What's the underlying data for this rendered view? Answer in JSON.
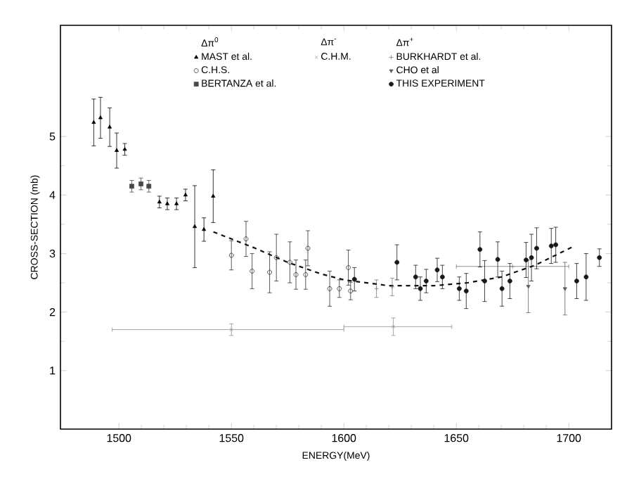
{
  "chart_data": {
    "type": "scatter",
    "xlabel": "ENERGY(MeV)",
    "ylabel": "CROSS-SECTION (mb)",
    "xlim": [
      1474,
      1719
    ],
    "ylim": [
      0,
      6.9
    ],
    "xticks": [
      1500,
      1550,
      1600,
      1650,
      1700
    ],
    "yticks": [
      1,
      2,
      3,
      4,
      5
    ],
    "legend": "top",
    "annotations": [
      "Δπ$^{0}$",
      "Δπ$^{-}$",
      "Δπ$^{+}$"
    ],
    "series": [
      {
        "name": "MAST et al.",
        "color": "#000000",
        "marker": "triangle",
        "x": [
          1488.8,
          1491.8,
          1495.9,
          1499,
          1502.6,
          1518,
          1521.5,
          1525.6,
          1529.6,
          1533.7,
          1537.8,
          1541.9
        ],
        "values": [
          5.24,
          5.32,
          5.16,
          4.76,
          4.78,
          3.88,
          3.85,
          3.85,
          4.0,
          3.46,
          3.41,
          3.98
        ],
        "errors": [
          0.4,
          0.35,
          0.33,
          0.3,
          0.1,
          0.1,
          0.1,
          0.1,
          0.1,
          0.7,
          0.2,
          0.45
        ]
      },
      {
        "name": "C.H.S.",
        "color": "#303030",
        "marker": "circle",
        "x": [
          1550,
          1556.5,
          1559.2,
          1567,
          1570,
          1576,
          1578.7,
          1583,
          1584,
          1593.7,
          1598,
          1602,
          1603
        ],
        "values": [
          2.97,
          3.25,
          2.7,
          2.68,
          2.93,
          2.85,
          2.64,
          2.64,
          3.09,
          2.4,
          2.4,
          2.76,
          2.36
        ],
        "errors": [
          0.25,
          0.3,
          0.3,
          0.35,
          0.4,
          0.35,
          0.25,
          0.25,
          0.3,
          0.3,
          0.15,
          0.3,
          0.15
        ]
      },
      {
        "name": "BERTANZA et al.",
        "color": "#484848",
        "marker": "square",
        "x": [
          1505.7,
          1509.8,
          1513.3
        ],
        "values": [
          4.15,
          4.19,
          4.15
        ],
        "errors": [
          0.1,
          0.1,
          0.1
        ]
      },
      {
        "name": "C.H.M.",
        "color": "#909090",
        "marker": "cross",
        "x": [
          1550,
          1622
        ],
        "values": [
          1.7,
          1.75
        ],
        "errors": [
          0.1,
          0.15
        ],
        "xerrors": [
          [
            1497,
            1600
          ],
          [
            1600,
            1648
          ]
        ]
      },
      {
        "name": "BURKHARDT et al.",
        "color": "#787878",
        "marker": "plus",
        "x": [
          1614.5,
          1621.5,
          1675
        ],
        "values": [
          2.4,
          2.43,
          2.78
        ],
        "errors": [
          0.15,
          0.15,
          null
        ],
        "xerrors": [
          null,
          null,
          [
            1650,
            1700
          ]
        ]
      },
      {
        "name": "CHO et al",
        "color": "#606060",
        "marker": "triangle-down",
        "x": [
          1682,
          1698.3
        ],
        "values": [
          2.44,
          2.4
        ],
        "errors": [
          0.45,
          0.45
        ]
      },
      {
        "name": "THIS EXPERIMENT",
        "color": "#181818",
        "marker": "dot",
        "x": [
          1604.7,
          1623.6,
          1631.9,
          1634,
          1636.6,
          1641.5,
          1643.8,
          1651.3,
          1654.4,
          1660.5,
          1662.6,
          1668.4,
          1670.3,
          1673.8,
          1681,
          1683.4,
          1685.7,
          1692.2,
          1694.2,
          1703.5,
          1707.7,
          1713.6
        ],
        "values": [
          2.56,
          2.85,
          2.6,
          2.4,
          2.53,
          2.72,
          2.6,
          2.4,
          2.36,
          3.07,
          2.53,
          2.9,
          2.4,
          2.53,
          2.89,
          2.93,
          3.09,
          3.13,
          3.15,
          2.53,
          2.6,
          2.93
        ],
        "errors": [
          0.2,
          0.3,
          0.2,
          0.2,
          0.2,
          0.2,
          0.2,
          0.2,
          0.3,
          0.3,
          0.35,
          0.3,
          0.3,
          0.3,
          0.3,
          0.4,
          0.35,
          0.3,
          0.3,
          0.3,
          0.4,
          0.15
        ]
      },
      {
        "type": "line",
        "color": "#111111",
        "line_style": "dashed",
        "marker": "none",
        "x": [
          1542,
          1560,
          1575,
          1590,
          1600,
          1620,
          1640,
          1655,
          1670,
          1685,
          1702
        ],
        "values": [
          3.37,
          3.1,
          2.85,
          2.65,
          2.55,
          2.45,
          2.45,
          2.5,
          2.6,
          2.8,
          3.12
        ]
      }
    ]
  }
}
